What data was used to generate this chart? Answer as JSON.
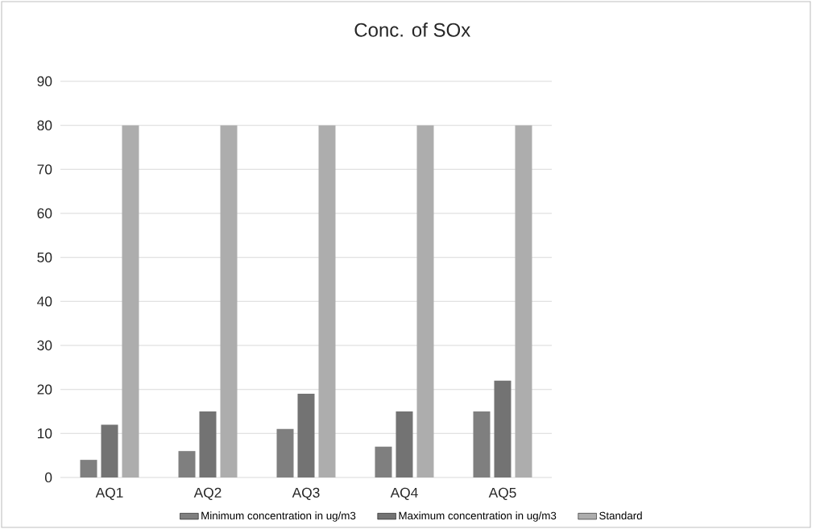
{
  "chart_data": {
    "type": "bar",
    "title": "Conc. of SOx",
    "categories": [
      "AQ1",
      "AQ2",
      "AQ3",
      "AQ4",
      "AQ5"
    ],
    "series": [
      {
        "name": "Minimum concentration in ug/m3",
        "color": "#7f7f7f",
        "values": [
          4,
          6,
          11,
          7,
          15
        ]
      },
      {
        "name": "Maximum concentration in ug/m3",
        "color": "#737373",
        "values": [
          12,
          15,
          19,
          15,
          22
        ]
      },
      {
        "name": "Standard",
        "color": "#adadad",
        "values": [
          80,
          80,
          80,
          80,
          80
        ]
      }
    ],
    "ylim": [
      0,
      90
    ],
    "yticks": [
      0,
      10,
      20,
      30,
      40,
      50,
      60,
      70,
      80,
      90
    ],
    "grid": "y",
    "legend": "bottom"
  }
}
